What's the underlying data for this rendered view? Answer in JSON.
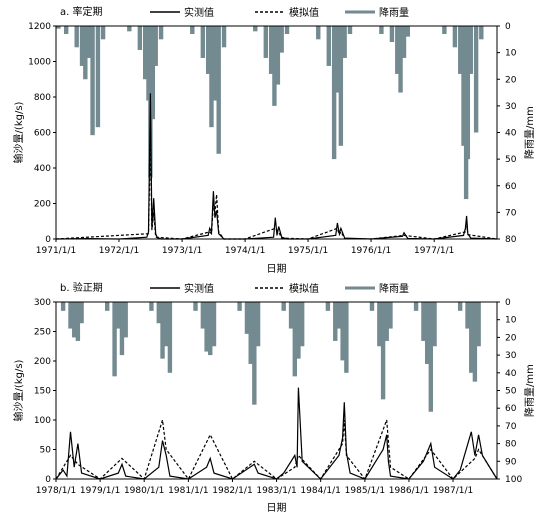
{
  "colors": {
    "rain": "#738a91",
    "observed": "#000000",
    "simulated": "#000000",
    "axis": "#000000"
  },
  "chart_data": [
    {
      "type": "line",
      "title": "a. 率定期",
      "xlabel": "日期",
      "ylabel": "输沙量/(kg/s)",
      "y2label": "降雨量/mm",
      "ylim": [
        0,
        1200
      ],
      "y2lim": [
        0,
        80
      ],
      "y2_inverted": true,
      "yticks": [
        "0",
        "200",
        "400",
        "600",
        "800",
        "1000",
        "1200"
      ],
      "y2ticks": [
        "0",
        "10",
        "20",
        "30",
        "40",
        "50",
        "60",
        "70",
        "80"
      ],
      "xticks": [
        "1971/1/1",
        "1972/1/1",
        "1973/1/1",
        "1974/1/1",
        "1975/1/1",
        "1976/1/1",
        "1977/1/1"
      ],
      "xrange": [
        "1971/1/1",
        "1977/12/31"
      ],
      "legend_position": "top",
      "series": [
        {
          "name": "实测值",
          "kind": "line-solid",
          "x": [
            "1971/1/1",
            "1971/7/1",
            "1972/1/1",
            "1972/6/10",
            "1972/6/20",
            "1972/7/1",
            "1972/7/10",
            "1972/7/20",
            "1972/8/1",
            "1972/8/10",
            "1972/9/1",
            "1973/1/1",
            "1973/6/1",
            "1973/6/10",
            "1973/6/20",
            "1973/7/1",
            "1973/7/10",
            "1973/7/20",
            "1973/8/1",
            "1973/9/1",
            "1974/1/1",
            "1974/6/15",
            "1974/6/25",
            "1974/7/5",
            "1974/7/15",
            "1974/8/1",
            "1974/9/1",
            "1975/1/1",
            "1975/6/10",
            "1975/6/20",
            "1975/7/1",
            "1975/7/10",
            "1975/8/1",
            "1976/1/1",
            "1976/7/1",
            "1976/7/10",
            "1976/8/1",
            "1977/1/1",
            "1977/6/20",
            "1977/7/1",
            "1977/7/8",
            "1977/7/15",
            "1977/8/1",
            "1977/12/31"
          ],
          "values": [
            0,
            2,
            0,
            10,
            40,
            820,
            60,
            230,
            30,
            8,
            0,
            0,
            20,
            60,
            40,
            270,
            120,
            160,
            30,
            0,
            0,
            10,
            120,
            20,
            70,
            10,
            0,
            0,
            20,
            90,
            30,
            60,
            5,
            0,
            15,
            35,
            3,
            0,
            20,
            60,
            130,
            30,
            5,
            0
          ]
        },
        {
          "name": "模拟值",
          "kind": "line-dashed",
          "x": [
            "1971/1/1",
            "1972/6/20",
            "1972/7/1",
            "1972/7/10",
            "1972/7/20",
            "1972/8/1",
            "1973/1/1",
            "1973/6/10",
            "1973/6/20",
            "1973/7/1",
            "1973/7/10",
            "1973/7/20",
            "1973/8/1",
            "1973/9/1",
            "1974/1/1",
            "1974/6/25",
            "1974/7/15",
            "1974/8/1",
            "1975/1/1",
            "1975/6/20",
            "1975/7/1",
            "1975/7/10",
            "1975/8/1",
            "1976/1/1",
            "1976/7/10",
            "1977/1/1",
            "1977/7/1",
            "1977/7/8",
            "1977/7/15",
            "1977/12/31"
          ],
          "values": [
            0,
            30,
            560,
            50,
            150,
            10,
            0,
            40,
            30,
            200,
            150,
            250,
            40,
            0,
            0,
            60,
            40,
            5,
            0,
            60,
            25,
            40,
            3,
            0,
            20,
            0,
            40,
            110,
            25,
            0
          ]
        },
        {
          "name": "降雨量",
          "kind": "bar-inverted-secondary-axis",
          "x": [
            "1971/1/15",
            "1971/3/1",
            "1971/5/1",
            "1971/6/1",
            "1971/6/20",
            "1971/7/10",
            "1971/8/1",
            "1971/9/1",
            "1971/10/1",
            "1972/3/1",
            "1972/5/1",
            "1972/6/1",
            "1972/6/20",
            "1972/7/1",
            "1972/7/15",
            "1972/8/1",
            "1972/9/1",
            "1973/3/1",
            "1973/5/1",
            "1973/6/1",
            "1973/6/20",
            "1973/7/10",
            "1973/8/1",
            "1973/9/1",
            "1974/3/1",
            "1974/5/1",
            "1974/6/1",
            "1974/6/20",
            "1974/7/10",
            "1974/8/1",
            "1974/9/1",
            "1975/3/1",
            "1975/5/1",
            "1975/6/1",
            "1975/6/20",
            "1975/7/10",
            "1975/8/1",
            "1975/9/1",
            "1976/3/1",
            "1976/5/1",
            "1976/6/1",
            "1976/6/20",
            "1976/7/10",
            "1976/8/1",
            "1977/3/1",
            "1977/5/1",
            "1977/6/1",
            "1977/6/20",
            "1977/7/5",
            "1977/7/15",
            "1977/8/1",
            "1977/9/1",
            "1977/10/1"
          ],
          "values": [
            1,
            3,
            8,
            15,
            20,
            12,
            41,
            38,
            5,
            2,
            9,
            20,
            28,
            57,
            35,
            15,
            5,
            3,
            12,
            18,
            38,
            28,
            48,
            8,
            2,
            12,
            18,
            30,
            22,
            10,
            3,
            5,
            15,
            50,
            25,
            45,
            12,
            3,
            3,
            6,
            18,
            25,
            12,
            4,
            3,
            8,
            18,
            45,
            65,
            50,
            18,
            40,
            5
          ]
        }
      ]
    },
    {
      "type": "line",
      "title": "b. 验正期",
      "xlabel": "日期",
      "ylabel": "输沙量/(kg/s)",
      "y2label": "降雨量/mm",
      "ylim": [
        0,
        300
      ],
      "y2lim": [
        0,
        100
      ],
      "y2_inverted": true,
      "yticks": [
        "0",
        "50",
        "100",
        "150",
        "200",
        "250",
        "300"
      ],
      "y2ticks": [
        "0",
        "10",
        "20",
        "30",
        "40",
        "50",
        "60",
        "70",
        "80",
        "90",
        "100"
      ],
      "xticks": [
        "1978/1/1",
        "1979/1/1",
        "1980/1/1",
        "1981/1/1",
        "1982/1/1",
        "1983/1/1",
        "1984/1/1",
        "1985/1/1",
        "1986/1/1",
        "1987/1/1"
      ],
      "xrange": [
        "1978/1/1",
        "1987/12/31"
      ],
      "legend_position": "top",
      "series": [
        {
          "name": "实测值",
          "kind": "line-solid",
          "x": [
            "1978/1/1",
            "1978/3/1",
            "1978/4/1",
            "1978/5/1",
            "1978/6/1",
            "1978/7/1",
            "1978/8/1",
            "1979/1/1",
            "1979/6/1",
            "1979/7/1",
            "1979/8/1",
            "1980/1/1",
            "1980/5/1",
            "1980/6/1",
            "1980/7/1",
            "1980/8/1",
            "1981/1/1",
            "1981/6/1",
            "1981/7/1",
            "1981/8/1",
            "1982/1/1",
            "1982/7/1",
            "1982/8/1",
            "1983/1/1",
            "1983/3/1",
            "1983/6/1",
            "1983/6/20",
            "1983/7/1",
            "1983/8/1",
            "1984/1/1",
            "1984/6/1",
            "1984/7/1",
            "1984/7/15",
            "1984/8/1",
            "1984/9/1",
            "1985/1/1",
            "1985/6/1",
            "1985/7/1",
            "1985/7/15",
            "1985/8/1",
            "1986/1/1",
            "1986/5/1",
            "1986/7/1",
            "1986/8/1",
            "1987/1/1",
            "1987/3/1",
            "1987/6/1",
            "1987/7/1",
            "1987/8/1",
            "1987/9/1",
            "1987/12/31"
          ],
          "values": [
            0,
            15,
            5,
            80,
            20,
            60,
            10,
            0,
            10,
            25,
            5,
            0,
            20,
            65,
            40,
            5,
            0,
            20,
            35,
            10,
            0,
            25,
            10,
            0,
            10,
            40,
            20,
            155,
            30,
            0,
            40,
            70,
            130,
            45,
            10,
            0,
            50,
            75,
            30,
            5,
            0,
            30,
            60,
            20,
            0,
            15,
            80,
            40,
            75,
            40,
            0
          ]
        },
        {
          "name": "模拟值",
          "kind": "line-dashed",
          "x": [
            "1978/1/1",
            "1978/5/1",
            "1978/7/1",
            "1979/1/1",
            "1979/7/1",
            "1980/1/1",
            "1980/6/1",
            "1980/7/1",
            "1981/1/1",
            "1981/7/1",
            "1982/1/1",
            "1982/7/1",
            "1983/1/1",
            "1983/6/1",
            "1983/7/1",
            "1984/1/1",
            "1984/7/1",
            "1984/7/15",
            "1984/8/1",
            "1985/1/1",
            "1985/7/1",
            "1985/8/1",
            "1986/1/1",
            "1986/7/1",
            "1987/1/1",
            "1987/7/1",
            "1987/8/1",
            "1987/12/31"
          ],
          "values": [
            0,
            40,
            25,
            0,
            35,
            0,
            100,
            50,
            0,
            75,
            0,
            30,
            0,
            20,
            40,
            0,
            60,
            100,
            40,
            0,
            100,
            20,
            0,
            50,
            0,
            35,
            50,
            0
          ]
        },
        {
          "name": "降雨量",
          "kind": "bar-inverted-secondary-axis",
          "x": [
            "1978/3/1",
            "1978/5/1",
            "1978/6/1",
            "1978/7/1",
            "1978/8/1",
            "1979/3/1",
            "1979/5/1",
            "1979/6/1",
            "1979/7/1",
            "1979/8/1",
            "1980/3/1",
            "1980/5/1",
            "1980/6/1",
            "1980/7/1",
            "1980/8/1",
            "1981/3/1",
            "1981/5/1",
            "1981/6/1",
            "1981/7/1",
            "1981/8/1",
            "1982/3/1",
            "1982/5/1",
            "1982/6/1",
            "1982/7/1",
            "1982/8/1",
            "1983/3/1",
            "1983/5/1",
            "1983/6/1",
            "1983/7/1",
            "1983/8/1",
            "1984/3/1",
            "1984/5/1",
            "1984/6/1",
            "1984/7/1",
            "1984/8/1",
            "1985/3/1",
            "1985/5/1",
            "1985/6/1",
            "1985/7/1",
            "1985/8/1",
            "1986/3/1",
            "1986/5/1",
            "1986/6/1",
            "1986/7/1",
            "1986/8/1",
            "1987/3/1",
            "1987/5/1",
            "1987/6/1",
            "1987/7/1",
            "1987/8/1"
          ],
          "values": [
            5,
            15,
            20,
            22,
            12,
            5,
            42,
            15,
            30,
            20,
            5,
            12,
            32,
            25,
            40,
            5,
            15,
            28,
            30,
            25,
            5,
            18,
            35,
            58,
            25,
            5,
            15,
            42,
            32,
            25,
            5,
            22,
            15,
            33,
            40,
            5,
            25,
            55,
            22,
            15,
            5,
            22,
            35,
            62,
            25,
            5,
            15,
            40,
            45,
            25
          ]
        }
      ]
    }
  ]
}
